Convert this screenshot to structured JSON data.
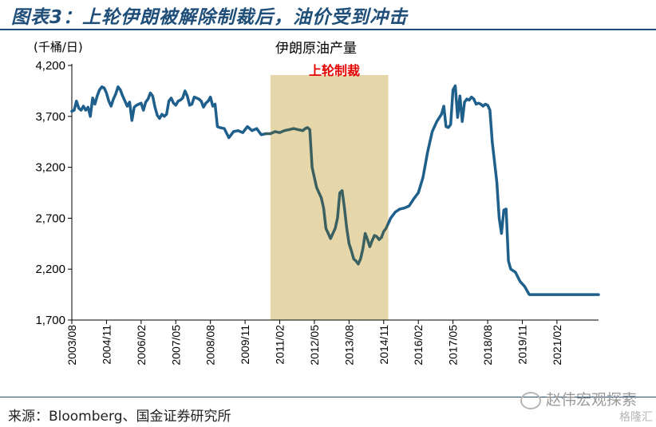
{
  "figure_title": "图表3：上轮伊朗被解除制裁后，油价受到冲击",
  "source": "来源：Bloomberg、国金证券研究所",
  "watermark": "赵伟宏观探索",
  "watermark2": "格隆汇",
  "colors": {
    "title": "#1f4e79",
    "line": "#1f5f8b",
    "line_dark": "#3a6060",
    "shade": "#e6d7ab",
    "sanction_label": "#e60000"
  },
  "chart_data": {
    "type": "line",
    "title": "伊朗原油产量",
    "ylabel": "(千桶/日)",
    "ylim": [
      1700,
      4200
    ],
    "yticks": [
      "1,700",
      "2,200",
      "2,700",
      "3,200",
      "3,700",
      "4,200"
    ],
    "ytick_values": [
      1700,
      2200,
      2700,
      3200,
      3700,
      4200
    ],
    "xlim": [
      "2003-08",
      "2022-08"
    ],
    "xticks": [
      "2003/08",
      "2004/11",
      "2006/02",
      "2007/05",
      "2008/08",
      "2009/11",
      "2011/02",
      "2012/05",
      "2013/08",
      "2014/11",
      "2016/02",
      "2017/05",
      "2018/08",
      "2019/11",
      "2021/02"
    ],
    "annotations": [
      {
        "text": "上轮制裁",
        "x_start": "2010-10",
        "x_end": "2015-01"
      }
    ],
    "series": [
      {
        "x": [
          "2003-08",
          "2003-09",
          "2003-10",
          "2003-11",
          "2003-12",
          "2004-01",
          "2004-02",
          "2004-03",
          "2004-04",
          "2004-05",
          "2004-06",
          "2004-07",
          "2004-08",
          "2004-09",
          "2004-10",
          "2004-11",
          "2004-12",
          "2005-01",
          "2005-02",
          "2005-03",
          "2005-04",
          "2005-05",
          "2005-06",
          "2005-07",
          "2005-08",
          "2005-09",
          "2005-10",
          "2005-11",
          "2005-12",
          "2006-01",
          "2006-02",
          "2006-03",
          "2006-04",
          "2006-05",
          "2006-06",
          "2006-07",
          "2006-08",
          "2006-09",
          "2006-10",
          "2006-11",
          "2006-12",
          "2007-01",
          "2007-02",
          "2007-03",
          "2007-04",
          "2007-05",
          "2007-06",
          "2007-07",
          "2007-08",
          "2007-09",
          "2007-10",
          "2007-11",
          "2007-12",
          "2008-01",
          "2008-02",
          "2008-03",
          "2008-04",
          "2008-05",
          "2008-06",
          "2008-07",
          "2008-08",
          "2008-09",
          "2008-10",
          "2008-11",
          "2008-12",
          "2009-02",
          "2009-04",
          "2009-06",
          "2009-08",
          "2009-10",
          "2009-12",
          "2010-02",
          "2010-04",
          "2010-06",
          "2010-08",
          "2010-10",
          "2010-12",
          "2011-02",
          "2011-04",
          "2011-06",
          "2011-08",
          "2011-10",
          "2011-12",
          "2012-01",
          "2012-02",
          "2012-03",
          "2012-04",
          "2012-05",
          "2012-06",
          "2012-07",
          "2012-08",
          "2012-09",
          "2012-10",
          "2012-11",
          "2012-12",
          "2013-01",
          "2013-02",
          "2013-03",
          "2013-04",
          "2013-05",
          "2013-06",
          "2013-07",
          "2013-08",
          "2013-09",
          "2013-10",
          "2013-11",
          "2013-12",
          "2014-01",
          "2014-02",
          "2014-03",
          "2014-04",
          "2014-05",
          "2014-06",
          "2014-07",
          "2014-08",
          "2014-09",
          "2014-10",
          "2014-11",
          "2014-12",
          "2015-01",
          "2015-02",
          "2015-04",
          "2015-06",
          "2015-08",
          "2015-10",
          "2015-12",
          "2016-02",
          "2016-04",
          "2016-06",
          "2016-08",
          "2016-10",
          "2016-12",
          "2017-01",
          "2017-02",
          "2017-03",
          "2017-04",
          "2017-05",
          "2017-06",
          "2017-07",
          "2017-08",
          "2017-09",
          "2017-10",
          "2017-11",
          "2017-12",
          "2018-01",
          "2018-02",
          "2018-03",
          "2018-04",
          "2018-05",
          "2018-06",
          "2018-07",
          "2018-08",
          "2018-09",
          "2018-10",
          "2018-11",
          "2018-12",
          "2019-01",
          "2019-02",
          "2019-03",
          "2019-04",
          "2019-05",
          "2019-06",
          "2019-08",
          "2019-10",
          "2019-12",
          "2020-02",
          "2020-04",
          "2020-06",
          "2020-09",
          "2021-01",
          "2021-06",
          "2021-12",
          "2022-06",
          "2022-08"
        ],
        "values": [
          3750,
          3760,
          3850,
          3780,
          3760,
          3800,
          3760,
          3790,
          3700,
          3880,
          3820,
          3900,
          3960,
          3990,
          3980,
          3930,
          3850,
          3800,
          3870,
          3920,
          3990,
          3960,
          3900,
          3850,
          3800,
          3840,
          3660,
          3790,
          3810,
          3820,
          3830,
          3760,
          3840,
          3870,
          3930,
          3900,
          3790,
          3710,
          3680,
          3720,
          3700,
          3720,
          3850,
          3880,
          3830,
          3810,
          3850,
          3860,
          3880,
          3950,
          3900,
          3810,
          3820,
          3890,
          3880,
          3870,
          3850,
          3790,
          3830,
          3850,
          3890,
          3800,
          3820,
          3600,
          3590,
          3580,
          3490,
          3550,
          3560,
          3540,
          3600,
          3560,
          3580,
          3520,
          3530,
          3530,
          3550,
          3540,
          3560,
          3570,
          3580,
          3570,
          3560,
          3580,
          3590,
          3570,
          3200,
          3100,
          3000,
          2950,
          2900,
          2800,
          2600,
          2550,
          2500,
          2550,
          2600,
          2700,
          2950,
          2970,
          2800,
          2600,
          2450,
          2380,
          2300,
          2280,
          2250,
          2300,
          2400,
          2550,
          2490,
          2420,
          2480,
          2530,
          2520,
          2490,
          2510,
          2570,
          2600,
          2650,
          2700,
          2760,
          2790,
          2800,
          2820,
          2890,
          2950,
          3100,
          3350,
          3550,
          3650,
          3720,
          3800,
          3600,
          3590,
          3620,
          3960,
          4000,
          3690,
          3900,
          3650,
          3840,
          3870,
          3860,
          3890,
          3870,
          3820,
          3830,
          3820,
          3800,
          3820,
          3810,
          3760,
          3450,
          3250,
          3050,
          2700,
          2550,
          2780,
          2790,
          2280,
          2200,
          2170,
          2080,
          2030,
          1950,
          1950,
          1950,
          1950,
          1950,
          1950,
          1950,
          1950,
          1950
        ]
      }
    ]
  }
}
